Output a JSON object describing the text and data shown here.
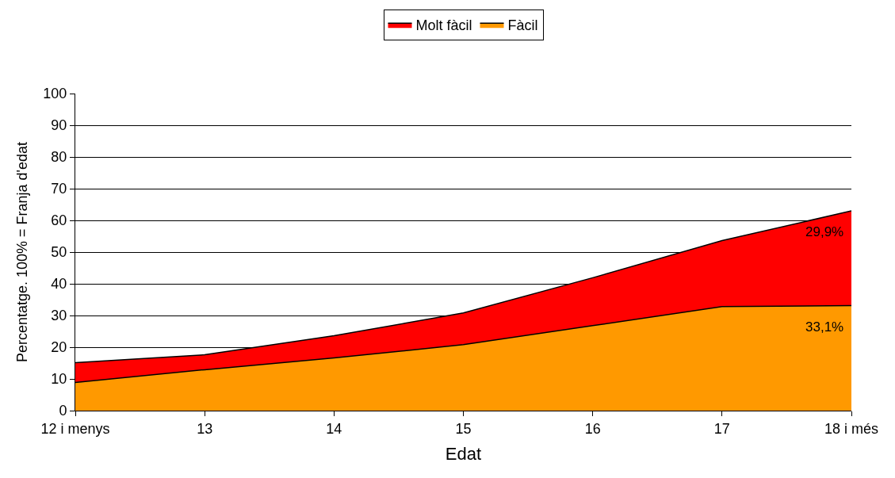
{
  "chart_data": {
    "type": "area",
    "stacked": true,
    "xlabel": "Edat",
    "ylabel": "Percentatge. 100% = Franja d'edat",
    "categories": [
      "12 i menys",
      "13",
      "14",
      "15",
      "16",
      "17",
      "18 i més"
    ],
    "series": [
      {
        "name": "Fàcil",
        "color": "#ff9900",
        "values": [
          8.9,
          12.9,
          16.6,
          20.8,
          26.8,
          32.8,
          33.1
        ],
        "value_labels": [
          null,
          null,
          null,
          null,
          null,
          null,
          "33,1%"
        ]
      },
      {
        "name": "Molt fàcil",
        "color": "#ff0000",
        "values": [
          6.2,
          4.7,
          7.0,
          10.0,
          15.1,
          20.8,
          29.9
        ],
        "value_labels": [
          null,
          null,
          null,
          null,
          null,
          null,
          "29,9%"
        ]
      }
    ],
    "ylim": [
      0,
      100
    ],
    "yticks": [
      0,
      10,
      20,
      30,
      40,
      50,
      60,
      70,
      80,
      90,
      100
    ],
    "grid": "y",
    "legend": "top",
    "marker": "none",
    "line_style": "solid"
  }
}
